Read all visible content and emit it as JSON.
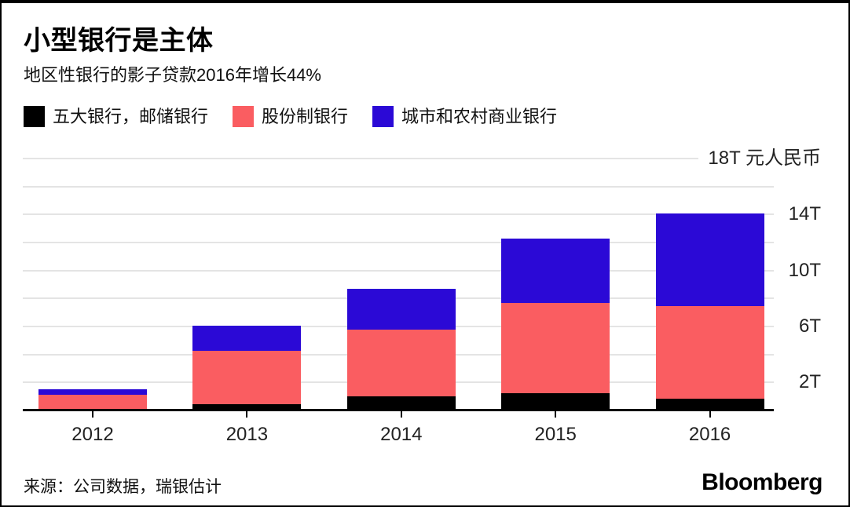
{
  "header": {
    "title": "小型银行是主体",
    "subtitle": "地区性银行的影子贷款2016年增长44%"
  },
  "chart_data": {
    "type": "bar",
    "variant": "stacked",
    "title": "小型银行是主体",
    "subtitle": "地区性银行的影子贷款2016年增长44%",
    "categories": [
      "2012",
      "2013",
      "2014",
      "2015",
      "2016"
    ],
    "series": [
      {
        "key": "big-five-postal",
        "name": "五大银行，邮储银行",
        "color": "#000000",
        "values": [
          0.1,
          0.45,
          1.0,
          1.25,
          0.85
        ]
      },
      {
        "key": "joint-stock",
        "name": "股份制银行",
        "color": "#fa5d61",
        "values": [
          1.0,
          3.8,
          4.8,
          6.45,
          6.6
        ]
      },
      {
        "key": "city-rural-commercial",
        "name": "城市和农村商业银行",
        "color": "#2b09d6",
        "values": [
          0.4,
          1.8,
          2.9,
          4.6,
          6.6
        ]
      }
    ],
    "totals": [
      1.5,
      6.05,
      8.7,
      12.3,
      14.05
    ],
    "unit_label": "元人民币",
    "ylim": [
      0,
      18
    ],
    "ygrid_step": 2,
    "yticks": [
      {
        "value": 18,
        "label": "18T 元人民币"
      },
      {
        "value": 14,
        "label": "14T"
      },
      {
        "value": 10,
        "label": "10T"
      },
      {
        "value": 6,
        "label": "6T"
      },
      {
        "value": 2,
        "label": "2T"
      }
    ],
    "grid": "horizontal",
    "legend_position": "top",
    "gridline_color": "#e4e4e4",
    "axis_color": "#000000"
  },
  "footer": {
    "source": "来源：公司数据，瑞银估计",
    "brand": "Bloomberg"
  }
}
